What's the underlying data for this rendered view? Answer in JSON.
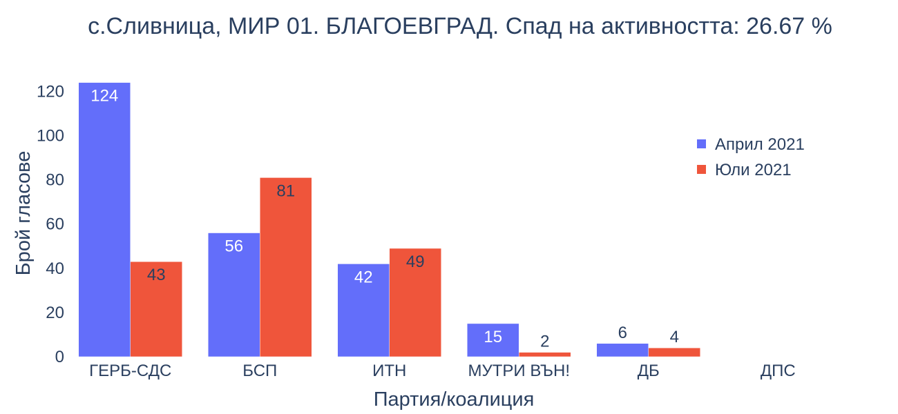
{
  "chart_data": {
    "type": "bar",
    "title": "с.Сливница, МИР 01. БЛАГОЕВГРАД. Спад на активността: 26.67 %",
    "xlabel": "Партия/коалиция",
    "ylabel": "Брой гласове",
    "categories": [
      "ГЕРБ-СДС",
      "БСП",
      "ИТН",
      "МУТРИ ВЪН!",
      "ДБ",
      "ДПС"
    ],
    "series": [
      {
        "name": "Април 2021",
        "color": "#636efa",
        "values": [
          124,
          56,
          42,
          15,
          6,
          0
        ],
        "labels": [
          "124",
          "56",
          "42",
          "15",
          "6",
          ""
        ]
      },
      {
        "name": "Юли 2021",
        "color": "#ef553b",
        "values": [
          43,
          81,
          49,
          2,
          4,
          0
        ],
        "labels": [
          "43",
          "81",
          "49",
          "2",
          "4",
          ""
        ]
      }
    ],
    "yticks": [
      0,
      20,
      40,
      60,
      80,
      100,
      120
    ],
    "ylim": [
      0,
      124.5
    ],
    "grid": false,
    "legend_position": "top-right"
  }
}
